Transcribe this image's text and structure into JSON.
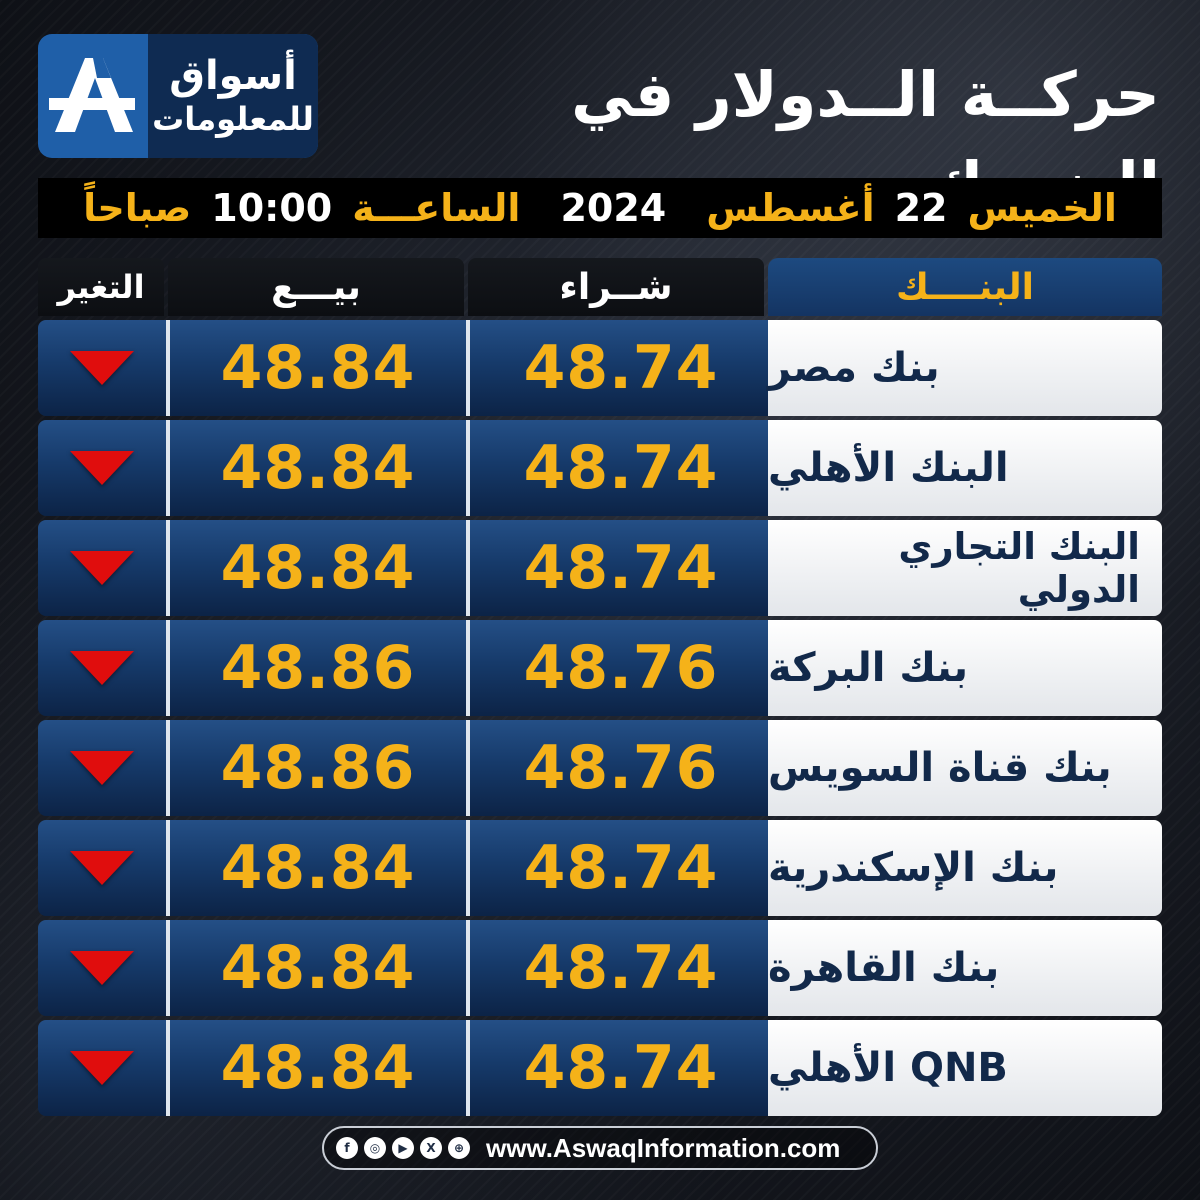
{
  "header": {
    "title": "حركــة الــدولار في البنــوك",
    "logo": {
      "line1": "أسواق",
      "line2": "للمعلومات",
      "mark": "A"
    }
  },
  "datebar": {
    "day": "الخميس",
    "date_num": "22",
    "month": "أغسطس",
    "year": "2024",
    "time_label": "الساعـــة",
    "time": "10:00",
    "period": "صباحاً"
  },
  "table": {
    "headers": {
      "bank": "البنــــك",
      "buy": "شــراء",
      "sell": "بيـــع",
      "change": "التغير"
    },
    "rows": [
      {
        "bank": "بنك مصر",
        "buy": "48.74",
        "sell": "48.84",
        "change": "down"
      },
      {
        "bank": "البنك الأهلي",
        "buy": "48.74",
        "sell": "48.84",
        "change": "down"
      },
      {
        "bank": "البنك التجاري الدولي",
        "buy": "48.74",
        "sell": "48.84",
        "change": "down"
      },
      {
        "bank": "بنك البركة",
        "buy": "48.76",
        "sell": "48.86",
        "change": "down"
      },
      {
        "bank": "بنك قناة السويس",
        "buy": "48.76",
        "sell": "48.86",
        "change": "down"
      },
      {
        "bank": "بنك الإسكندرية",
        "buy": "48.74",
        "sell": "48.84",
        "change": "down"
      },
      {
        "bank": "بنك القاهرة",
        "buy": "48.74",
        "sell": "48.84",
        "change": "down"
      },
      {
        "bank": "QNB الأهلي",
        "buy": "48.74",
        "sell": "48.84",
        "change": "down"
      }
    ]
  },
  "footer": {
    "url": "www.AswaqInformation.com",
    "social_icons": [
      "facebook-icon",
      "instagram-icon",
      "youtube-icon",
      "x-icon",
      "web-icon"
    ]
  },
  "colors": {
    "accent": "#f5b219",
    "down": "#e00d0d",
    "brand": "#1f5fa8"
  }
}
